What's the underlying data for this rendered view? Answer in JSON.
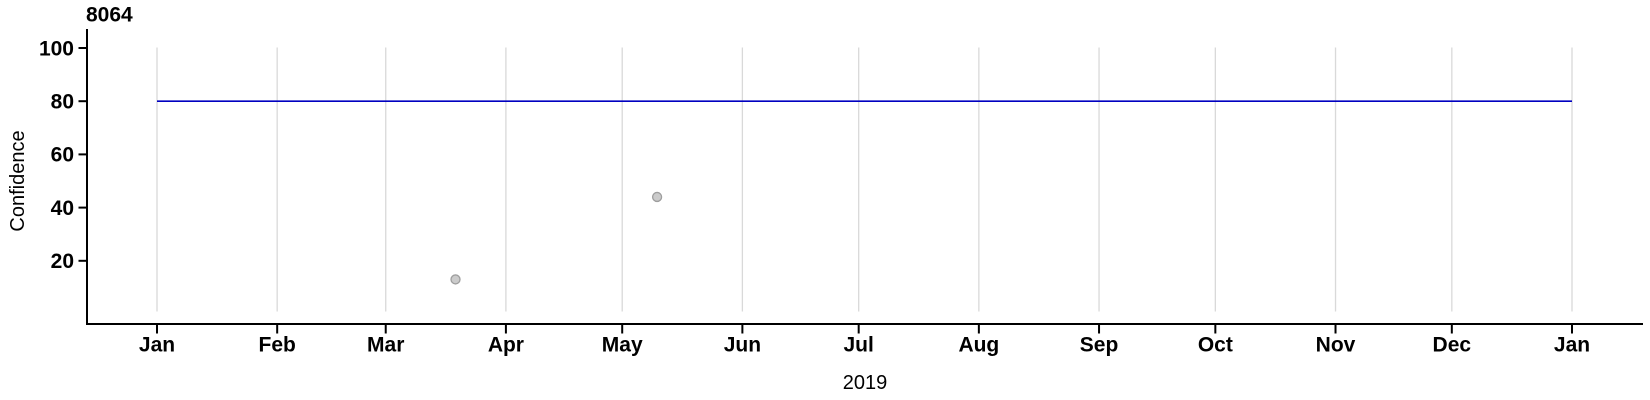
{
  "title": "8064",
  "chart_data": {
    "type": "scatter",
    "title": "8064",
    "xlabel": "2019",
    "ylabel": "Confidence",
    "x_axis": {
      "ticks": [
        {
          "label": "Jan",
          "date": "2019-01-01"
        },
        {
          "label": "Feb",
          "date": "2019-02-01"
        },
        {
          "label": "Mar",
          "date": "2019-03-01"
        },
        {
          "label": "Apr",
          "date": "2019-04-01"
        },
        {
          "label": "May",
          "date": "2019-05-01"
        },
        {
          "label": "Jun",
          "date": "2019-06-01"
        },
        {
          "label": "Jul",
          "date": "2019-07-01"
        },
        {
          "label": "Aug",
          "date": "2019-08-01"
        },
        {
          "label": "Sep",
          "date": "2019-09-01"
        },
        {
          "label": "Oct",
          "date": "2019-10-01"
        },
        {
          "label": "Nov",
          "date": "2019-11-01"
        },
        {
          "label": "Dec",
          "date": "2019-12-01"
        },
        {
          "label": "Jan",
          "date": "2020-01-01"
        }
      ],
      "range": [
        "2019-01-01",
        "2020-01-01"
      ],
      "grid": "vertical-gridlines-at-each-month"
    },
    "y_axis": {
      "ticks": [
        20,
        40,
        60,
        80,
        100
      ],
      "range": [
        0,
        100
      ],
      "grid": "none"
    },
    "points": [
      {
        "date": "2019-03-19",
        "value": 13
      },
      {
        "date": "2019-05-10",
        "value": 44
      }
    ],
    "reference_line": {
      "value": 80,
      "start": "2019-01-01",
      "end": "2020-01-01"
    },
    "legend": "none",
    "colors": {
      "reference_line": "#0000C0",
      "point_fill": "#CBCBCB",
      "point_stroke": "#9E9E9E",
      "gridline": "#D9D9D9",
      "axis": "#000000",
      "text": "#000000"
    }
  }
}
